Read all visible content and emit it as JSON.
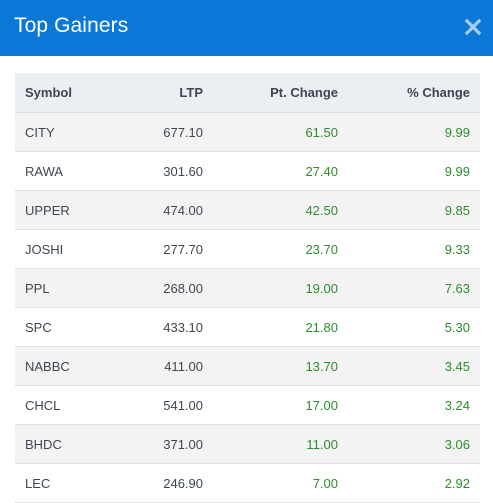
{
  "modal": {
    "title": "Top Gainers",
    "close_icon": "close-icon"
  },
  "table": {
    "headers": {
      "symbol": "Symbol",
      "ltp": "LTP",
      "pt_change": "Pt. Change",
      "pct_change": "% Change"
    },
    "rows": [
      {
        "symbol": "CITY",
        "ltp": "677.10",
        "pt_change": "61.50",
        "pct_change": "9.99"
      },
      {
        "symbol": "RAWA",
        "ltp": "301.60",
        "pt_change": "27.40",
        "pct_change": "9.99"
      },
      {
        "symbol": "UPPER",
        "ltp": "474.00",
        "pt_change": "42.50",
        "pct_change": "9.85"
      },
      {
        "symbol": "JOSHI",
        "ltp": "277.70",
        "pt_change": "23.70",
        "pct_change": "9.33"
      },
      {
        "symbol": "PPL",
        "ltp": "268.00",
        "pt_change": "19.00",
        "pct_change": "7.63"
      },
      {
        "symbol": "SPC",
        "ltp": "433.10",
        "pt_change": "21.80",
        "pct_change": "5.30"
      },
      {
        "symbol": "NABBC",
        "ltp": "411.00",
        "pt_change": "13.70",
        "pct_change": "3.45"
      },
      {
        "symbol": "CHCL",
        "ltp": "541.00",
        "pt_change": "17.00",
        "pct_change": "3.24"
      },
      {
        "symbol": "BHDC",
        "ltp": "371.00",
        "pt_change": "11.00",
        "pct_change": "3.06"
      },
      {
        "symbol": "LEC",
        "ltp": "246.90",
        "pt_change": "7.00",
        "pct_change": "2.92"
      }
    ]
  },
  "colors": {
    "header_bar": "#0b78d7",
    "positive": "#2c8d2c",
    "table_head": "#ebeef2",
    "row_stripe": "#f3f3f3"
  }
}
